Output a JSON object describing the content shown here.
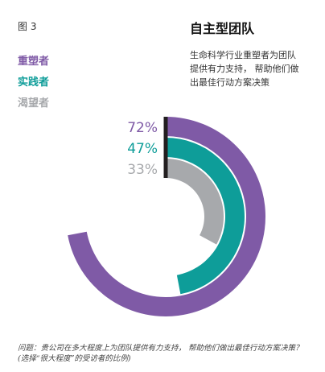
{
  "figure_label": "图 3",
  "title": "自主型团队",
  "subtitle_lines": [
    "生命科学行业重塑者为团队",
    "提供有力支持，  帮助他们做",
    "出最佳行动方案决策"
  ],
  "footnote_lines": [
    "问题：贵公司在多大程度上为团队提供有力支持，  帮助他们做出最佳行动方案决策？",
    "(选择“很大程度”的受访者的比例)"
  ],
  "colors": {
    "purple": "#7f5aa6",
    "teal": "#0e9d99",
    "gray": "#a7a9ac",
    "baseline": "#231f20"
  },
  "chart_data": {
    "type": "radial-bar",
    "unit": "%",
    "series": [
      {
        "name": "重塑者",
        "value": 72,
        "label": "72%",
        "color": "#7f5aa6"
      },
      {
        "name": "实践者",
        "value": 47,
        "label": "47%",
        "color": "#0e9d99"
      },
      {
        "name": "渴望者",
        "value": 33,
        "label": "33%",
        "color": "#a7a9ac"
      }
    ],
    "max": 100
  }
}
